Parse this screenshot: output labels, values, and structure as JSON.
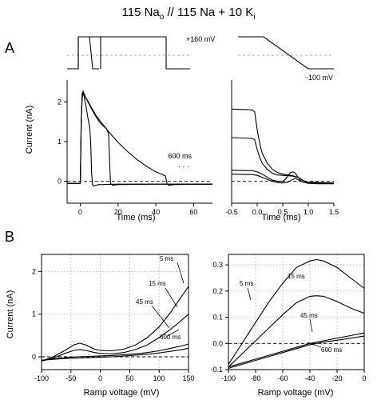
{
  "figure": {
    "title_parts": [
      "115 Na",
      "o",
      " // 115 Na + 10 K",
      "i"
    ],
    "panel_a_label": "A",
    "panel_b_label": "B"
  },
  "protocol": {
    "upper_voltage_label": "+160 mV",
    "lower_voltage_label": "-100 mV"
  },
  "chart_data": [
    {
      "id": "A-left",
      "type": "line",
      "xlabel": "Time (ms)",
      "ylabel": "Current (nA)",
      "xlim": [
        -7,
        70
      ],
      "ylim": [
        -0.55,
        2.55
      ],
      "xticks": [
        0,
        20,
        40,
        60
      ],
      "yticks": [
        0,
        1,
        2
      ],
      "annotation": "600 ms",
      "baseline_y": 0,
      "series": [
        {
          "x": [
            -7,
            0,
            0.5,
            1,
            1.5,
            2,
            3,
            4,
            5,
            5.5,
            6,
            6.5,
            7,
            8,
            10,
            20,
            40,
            70
          ],
          "y": [
            -0.05,
            -0.05,
            1.5,
            2.2,
            2.25,
            2.15,
            1.9,
            1.6,
            1.35,
            1.0,
            0.2,
            -0.08,
            -0.12,
            -0.1,
            -0.08,
            -0.07,
            -0.07,
            -0.07
          ]
        },
        {
          "x": [
            -7,
            0,
            0.5,
            1,
            1.5,
            2,
            4,
            6,
            8,
            10,
            12,
            14,
            15,
            15.5,
            16,
            17,
            20,
            40,
            70
          ],
          "y": [
            -0.05,
            -0.05,
            1.5,
            2.2,
            2.27,
            2.2,
            2.0,
            1.82,
            1.65,
            1.5,
            1.4,
            1.32,
            1.2,
            0.5,
            -0.05,
            -0.1,
            -0.08,
            -0.07,
            -0.07
          ]
        },
        {
          "x": [
            -7,
            0,
            0.5,
            1,
            1.5,
            2,
            4,
            6,
            8,
            10,
            15,
            20,
            25,
            30,
            35,
            40,
            44,
            45,
            45.5,
            46,
            47,
            50,
            70
          ],
          "y": [
            -0.05,
            -0.05,
            1.5,
            2.1,
            2.2,
            2.18,
            2.02,
            1.85,
            1.68,
            1.55,
            1.25,
            0.98,
            0.75,
            0.55,
            0.38,
            0.24,
            0.16,
            0.14,
            0.05,
            -0.07,
            -0.1,
            -0.08,
            -0.07
          ]
        }
      ]
    },
    {
      "id": "A-right",
      "type": "line",
      "xlabel": "Time (ms)",
      "ylabel": "",
      "xlim": [
        -0.5,
        1.5
      ],
      "ylim": [
        -0.55,
        2.55
      ],
      "xticks": [
        -0.5,
        0.0,
        0.5,
        1.0,
        1.5
      ],
      "xtick_labels": [
        "-0.5",
        "0.0",
        "0.5",
        "1.0",
        "1.5"
      ],
      "baseline_y": 0,
      "series": [
        {
          "x": [
            -0.5,
            -0.1,
            -0.05,
            0.0,
            0.05,
            0.1,
            0.2,
            0.3,
            0.4,
            0.5,
            0.6,
            0.7,
            0.8,
            0.9,
            1.0,
            1.5
          ],
          "y": [
            1.82,
            1.8,
            1.75,
            1.3,
            0.95,
            0.7,
            0.45,
            0.3,
            0.22,
            0.18,
            0.16,
            0.14,
            0.1,
            0.02,
            -0.02,
            -0.04
          ]
        },
        {
          "x": [
            -0.5,
            -0.1,
            -0.05,
            0.0,
            0.05,
            0.1,
            0.2,
            0.3,
            0.4,
            0.5,
            0.6,
            0.7,
            0.8,
            0.9,
            1.0,
            1.5
          ],
          "y": [
            1.1,
            1.08,
            1.05,
            0.8,
            0.6,
            0.45,
            0.3,
            0.2,
            0.16,
            0.15,
            0.14,
            0.13,
            0.1,
            0.02,
            -0.03,
            -0.05
          ]
        },
        {
          "x": [
            -0.5,
            -0.1,
            0.0,
            0.1,
            0.2,
            0.3,
            0.4,
            0.5,
            0.55,
            0.6,
            0.65,
            0.7,
            0.75,
            0.8,
            0.85,
            0.9,
            1.0,
            1.2,
            1.5
          ],
          "y": [
            0.28,
            0.27,
            0.24,
            0.18,
            0.1,
            0.03,
            0.0,
            0.0,
            0.05,
            0.14,
            0.22,
            0.24,
            0.2,
            0.1,
            0.02,
            -0.02,
            -0.04,
            -0.05,
            -0.05
          ]
        },
        {
          "x": [
            -0.5,
            -0.1,
            0.0,
            0.1,
            0.2,
            0.3,
            0.4,
            0.5,
            0.6,
            0.7,
            0.75,
            0.8,
            0.9,
            1.0,
            1.2,
            1.5
          ],
          "y": [
            0.18,
            0.17,
            0.15,
            0.1,
            0.05,
            0.0,
            -0.03,
            -0.04,
            -0.02,
            0.05,
            0.08,
            0.04,
            -0.02,
            -0.05,
            -0.06,
            -0.06
          ]
        }
      ]
    },
    {
      "id": "B-left",
      "type": "line",
      "xlabel": "Ramp voltage (mV)",
      "ylabel": "Current (nA)",
      "xlim": [
        -100,
        150
      ],
      "ylim": [
        -0.3,
        2.4
      ],
      "xticks": [
        -100,
        -50,
        0,
        50,
        100,
        150
      ],
      "yticks": [
        0,
        1,
        2
      ],
      "grid": true,
      "baseline_y": 0,
      "series_labels": [
        "5 ms",
        "15 ms",
        "45 ms",
        "600 ms"
      ],
      "series": [
        {
          "name": "5 ms",
          "x": [
            -100,
            -80,
            -60,
            -45,
            -35,
            -25,
            -10,
            0,
            20,
            40,
            60,
            80,
            100,
            120,
            135,
            150
          ],
          "y": [
            -0.1,
            0.0,
            0.15,
            0.28,
            0.32,
            0.28,
            0.18,
            0.15,
            0.14,
            0.18,
            0.28,
            0.45,
            0.7,
            1.05,
            1.35,
            1.65
          ]
        },
        {
          "name": "15 ms",
          "x": [
            -100,
            -80,
            -60,
            -45,
            -35,
            -25,
            -10,
            0,
            20,
            40,
            60,
            80,
            100,
            120,
            135,
            150
          ],
          "y": [
            -0.1,
            -0.03,
            0.08,
            0.15,
            0.17,
            0.15,
            0.1,
            0.08,
            0.07,
            0.1,
            0.17,
            0.28,
            0.45,
            0.65,
            0.82,
            1.0
          ]
        },
        {
          "name": "45 ms",
          "x": [
            -100,
            -80,
            -60,
            -40,
            -20,
            0,
            20,
            40,
            60,
            80,
            100,
            120,
            140,
            150
          ],
          "y": [
            -0.08,
            -0.05,
            -0.02,
            0.0,
            0.01,
            0.02,
            0.03,
            0.05,
            0.07,
            0.1,
            0.14,
            0.2,
            0.26,
            0.3
          ]
        },
        {
          "name": "600 ms",
          "x": [
            -100,
            -80,
            -60,
            -40,
            -20,
            0,
            20,
            40,
            60,
            80,
            100,
            120,
            140,
            150
          ],
          "y": [
            -0.08,
            -0.06,
            -0.04,
            -0.03,
            -0.02,
            -0.01,
            0.0,
            0.02,
            0.04,
            0.06,
            0.09,
            0.13,
            0.17,
            0.2
          ]
        }
      ]
    },
    {
      "id": "B-right",
      "type": "line",
      "xlabel": "Ramp voltage (mV)",
      "ylabel": "",
      "xlim": [
        -100,
        0
      ],
      "ylim": [
        -0.1,
        0.34
      ],
      "xticks": [
        -100,
        -80,
        -60,
        -40,
        -20,
        0
      ],
      "yticks": [
        -0.1,
        0.0,
        0.1,
        0.2,
        0.3
      ],
      "ytick_labels": [
        "-0.1",
        "0.0",
        "0.1",
        "0.2",
        "0.3"
      ],
      "grid": true,
      "baseline_y": 0,
      "series_labels": [
        "5 ms",
        "15 ms",
        "45 ms",
        "600 ms"
      ],
      "series": [
        {
          "name": "5 ms",
          "x": [
            -100,
            -90,
            -80,
            -70,
            -60,
            -50,
            -40,
            -35,
            -30,
            -20,
            -10,
            0
          ],
          "y": [
            -0.08,
            0.0,
            0.08,
            0.16,
            0.23,
            0.29,
            0.315,
            0.32,
            0.315,
            0.29,
            0.25,
            0.21
          ]
        },
        {
          "name": "15 ms",
          "x": [
            -100,
            -90,
            -80,
            -70,
            -60,
            -50,
            -40,
            -35,
            -30,
            -20,
            -10,
            0
          ],
          "y": [
            -0.09,
            -0.04,
            0.01,
            0.06,
            0.11,
            0.155,
            0.18,
            0.182,
            0.18,
            0.16,
            0.135,
            0.115
          ]
        },
        {
          "name": "45 ms",
          "x": [
            -100,
            -90,
            -80,
            -70,
            -60,
            -50,
            -40,
            -30,
            -20,
            -10,
            0
          ],
          "y": [
            -0.09,
            -0.075,
            -0.06,
            -0.045,
            -0.03,
            -0.015,
            0.0,
            0.01,
            0.02,
            0.03,
            0.04
          ]
        },
        {
          "name": "600 ms",
          "x": [
            -100,
            -90,
            -80,
            -70,
            -60,
            -50,
            -40,
            -30,
            -20,
            -10,
            0
          ],
          "y": [
            -0.095,
            -0.08,
            -0.065,
            -0.05,
            -0.035,
            -0.02,
            -0.005,
            0.005,
            0.012,
            0.02,
            0.028
          ]
        }
      ]
    }
  ]
}
